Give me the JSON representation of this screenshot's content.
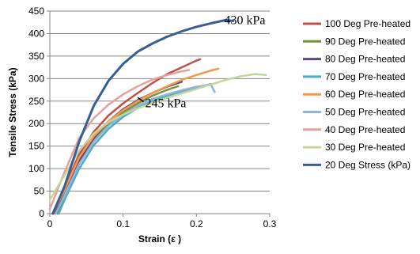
{
  "chart_data": {
    "type": "line",
    "xlabel": "Strain (ε )",
    "ylabel": "Tensile Stress (kPa)",
    "xlim": [
      0,
      0.3
    ],
    "ylim": [
      0,
      450
    ],
    "xticks": [
      "0",
      "0.1",
      "0.2",
      "0.3"
    ],
    "yticks": [
      "0",
      "50",
      "100",
      "150",
      "200",
      "250",
      "300",
      "350",
      "400",
      "450"
    ],
    "grid": "horizontal",
    "legend_position": "right",
    "annotations": [
      {
        "text": "430 kPa",
        "x": 0.238,
        "y": 430
      },
      {
        "text": "245 kPa",
        "x": 0.13,
        "y": 245,
        "arrow_to": [
          0.12,
          258
        ]
      }
    ],
    "series": [
      {
        "name": "100 Deg Pre-heated",
        "color": "#c0504d",
        "x": [
          0.004,
          0.02,
          0.04,
          0.06,
          0.08,
          0.1,
          0.12,
          0.14,
          0.16,
          0.18,
          0.2,
          0.205
        ],
        "y": [
          0,
          58,
          132,
          182,
          218,
          245,
          268,
          290,
          310,
          325,
          340,
          343
        ]
      },
      {
        "name": "90 Deg Pre-heated",
        "color": "#77933c",
        "x": [
          0.01,
          0.02,
          0.04,
          0.06,
          0.08,
          0.1,
          0.12,
          0.14,
          0.16,
          0.175
        ],
        "y": [
          0,
          42,
          112,
          162,
          198,
          225,
          245,
          262,
          275,
          283
        ]
      },
      {
        "name": "80 Deg Pre-heated",
        "color": "#604a7b",
        "x": [
          0.005,
          0.02,
          0.04,
          0.06,
          0.08,
          0.1,
          0.12,
          0.14,
          0.16,
          0.18
        ],
        "y": [
          0,
          45,
          118,
          168,
          205,
          232,
          252,
          268,
          282,
          293
        ]
      },
      {
        "name": "70 Deg Pre-heated",
        "color": "#4bacc6",
        "x": [
          0.012,
          0.02,
          0.04,
          0.06,
          0.08,
          0.1,
          0.12,
          0.14,
          0.16,
          0.18,
          0.2,
          0.22
        ],
        "y": [
          0,
          30,
          100,
          152,
          188,
          215,
          235,
          250,
          262,
          272,
          280,
          288
        ]
      },
      {
        "name": "60 Deg Pre-heated",
        "color": "#f79646",
        "x": [
          0.004,
          0.02,
          0.04,
          0.06,
          0.08,
          0.1,
          0.12,
          0.14,
          0.16,
          0.18,
          0.2,
          0.22,
          0.23
        ],
        "y": [
          0,
          52,
          125,
          172,
          205,
          230,
          250,
          268,
          283,
          297,
          308,
          318,
          322
        ]
      },
      {
        "name": "50 Deg Pre-heated",
        "color": "#95b3d7",
        "x": [
          0.008,
          0.02,
          0.04,
          0.06,
          0.08,
          0.1,
          0.12,
          0.14,
          0.16,
          0.18,
          0.2,
          0.22,
          0.225
        ],
        "y": [
          0,
          40,
          110,
          160,
          195,
          220,
          240,
          255,
          265,
          274,
          282,
          286,
          270
        ]
      },
      {
        "name": "40 Deg Pre-heated",
        "color": "#e6a19e",
        "x": [
          0.0,
          0.02,
          0.04,
          0.06,
          0.08,
          0.1,
          0.12,
          0.14,
          0.16,
          0.18,
          0.19
        ],
        "y": [
          10,
          92,
          168,
          212,
          242,
          265,
          283,
          298,
          308,
          316,
          319
        ]
      },
      {
        "name": "30 Deg Pre-heated",
        "color": "#c3d69b",
        "x": [
          0.0,
          0.02,
          0.04,
          0.06,
          0.08,
          0.1,
          0.12,
          0.14,
          0.16,
          0.18,
          0.2,
          0.22,
          0.24,
          0.26,
          0.28,
          0.295
        ],
        "y": [
          30,
          85,
          140,
          178,
          203,
          220,
          234,
          246,
          257,
          267,
          277,
          287,
          297,
          305,
          310,
          308
        ]
      },
      {
        "name": "20 Deg Stress (kPa)",
        "color": "#376092",
        "x": [
          0.004,
          0.02,
          0.04,
          0.06,
          0.08,
          0.1,
          0.12,
          0.14,
          0.16,
          0.18,
          0.2,
          0.22,
          0.24,
          0.25
        ],
        "y": [
          0,
          60,
          160,
          240,
          295,
          333,
          360,
          378,
          393,
          405,
          415,
          423,
          430,
          428
        ]
      }
    ]
  }
}
